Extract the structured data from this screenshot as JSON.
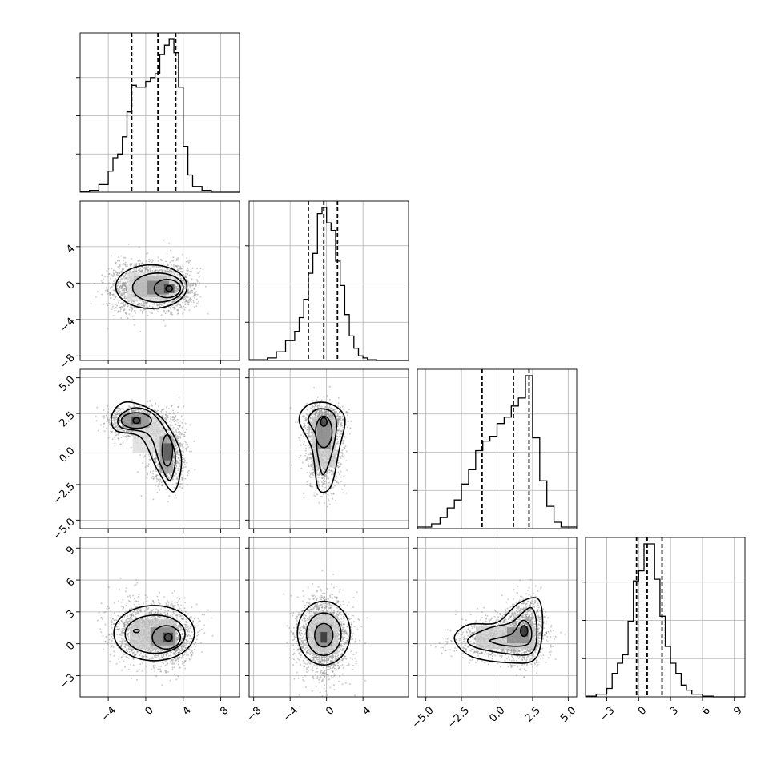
{
  "colors": {
    "line": "#000000",
    "grid": "#b0b0b0",
    "scatter": "#8c8c8c",
    "background": "#ffffff"
  },
  "chart_data": {
    "type": "corner",
    "grid": true,
    "dims": [
      {
        "axis_range": [
          -7,
          10
        ],
        "tick_values": [
          -4,
          0,
          4,
          8
        ],
        "tick_labels": [
          "−4",
          "0",
          "4",
          "8"
        ]
      },
      {
        "axis_range": [
          -8.5,
          9
        ],
        "tick_values": [
          -8,
          -4,
          0,
          4
        ],
        "tick_labels": [
          "−8",
          "−4",
          "0",
          "4"
        ]
      },
      {
        "axis_range": [
          -5.6,
          5.6
        ],
        "tick_values": [
          -5,
          -2.5,
          0,
          2.5,
          5
        ],
        "tick_labels": [
          "−5.0",
          "−2.5",
          "0.0",
          "2.5",
          "5.0"
        ]
      },
      {
        "axis_range": [
          -5,
          10
        ],
        "tick_values": [
          -3,
          0,
          3,
          6,
          9
        ],
        "tick_labels": [
          "−3",
          "0",
          "3",
          "6",
          "9"
        ]
      }
    ],
    "histograms": [
      {
        "dim": 0,
        "quantiles": [
          -1.5,
          1.3,
          3.2
        ],
        "bin_edges": [
          -7.0,
          -6.0,
          -5.0,
          -4.0,
          -3.5,
          -3.0,
          -2.5,
          -2.0,
          -1.5,
          -1.0,
          -0.5,
          0.0,
          0.5,
          1.0,
          1.5,
          2.0,
          2.5,
          3.0,
          3.5,
          4.0,
          4.5,
          5.0,
          6.0,
          7.0,
          10.0
        ],
        "counts": [
          2,
          5,
          20,
          55,
          90,
          100,
          145,
          210,
          280,
          275,
          275,
          290,
          300,
          310,
          360,
          385,
          400,
          365,
          275,
          120,
          45,
          15,
          5,
          0
        ]
      },
      {
        "dim": 1,
        "quantiles": [
          -2.0,
          -0.3,
          1.2
        ],
        "bin_edges": [
          -8.5,
          -6.5,
          -5.5,
          -4.5,
          -3.5,
          -3.0,
          -2.5,
          -2.0,
          -1.5,
          -1.0,
          -0.5,
          0.0,
          0.5,
          1.0,
          1.5,
          2.0,
          2.5,
          3.0,
          3.5,
          4.0,
          4.5,
          5.5,
          9.0
        ],
        "counts": [
          2,
          8,
          28,
          65,
          95,
          140,
          200,
          285,
          350,
          480,
          500,
          450,
          425,
          325,
          245,
          150,
          80,
          40,
          15,
          8,
          2,
          0
        ]
      },
      {
        "dim": 2,
        "quantiles": [
          -1.05,
          1.15,
          2.25
        ],
        "bin_edges": [
          -5.6,
          -4.6,
          -4.0,
          -3.5,
          -3.0,
          -2.5,
          -2.0,
          -1.5,
          -1.0,
          -0.5,
          0.0,
          0.5,
          1.0,
          1.5,
          2.0,
          2.5,
          3.0,
          3.5,
          4.0,
          4.5,
          5.6
        ],
        "counts": [
          5,
          15,
          35,
          65,
          90,
          140,
          185,
          245,
          275,
          290,
          330,
          350,
          385,
          410,
          480,
          285,
          150,
          70,
          20,
          5
        ]
      },
      {
        "dim": 3,
        "quantiles": [
          -0.2,
          0.8,
          2.2
        ],
        "bin_edges": [
          -5.0,
          -4.0,
          -3.0,
          -2.5,
          -2.0,
          -1.5,
          -1.0,
          -0.5,
          0.0,
          0.5,
          1.0,
          1.5,
          2.0,
          2.5,
          3.0,
          3.5,
          4.0,
          4.5,
          5.0,
          6.0,
          7.0,
          10.0
        ],
        "counts": [
          2,
          8,
          25,
          70,
          100,
          125,
          225,
          345,
          375,
          455,
          455,
          350,
          240,
          150,
          100,
          70,
          35,
          20,
          8,
          2,
          0
        ]
      }
    ],
    "pairs": [
      {
        "x_dim": 0,
        "y_dim": 1,
        "seed": 11,
        "n_points": 2000,
        "components": [
          {
            "w": 0.55,
            "mx": 2.5,
            "my": -0.5,
            "sx": 1.4,
            "sy": 1.35
          },
          {
            "w": 0.45,
            "mx": -1.2,
            "my": -0.3,
            "sx": 1.5,
            "sy": 1.45
          }
        ],
        "contours": [
          {
            "cx": 0.6,
            "cy": -0.4,
            "rx": 3.8,
            "ry": 2.4
          },
          {
            "cx": 1.3,
            "cy": -0.5,
            "rx": 2.7,
            "ry": 1.6
          },
          {
            "cx": 2.3,
            "cy": -0.6,
            "rx": 1.4,
            "ry": 1.0
          },
          {
            "cx": 2.5,
            "cy": -0.6,
            "rx": 0.35,
            "ry": 0.3
          }
        ],
        "density": [
          {
            "x": 2.5,
            "y": -0.6,
            "w": 1.1,
            "h": 1.0,
            "s": 0.8
          },
          {
            "x": 1.3,
            "y": -0.5,
            "w": 2.4,
            "h": 1.5,
            "s": 0.55
          },
          {
            "x": 0.5,
            "y": -0.4,
            "w": 3.6,
            "h": 2.3,
            "s": 0.3
          },
          {
            "x": 0.6,
            "y": -0.4,
            "w": 5.2,
            "h": 3.2,
            "s": 0.12
          }
        ]
      },
      {
        "x_dim": 0,
        "y_dim": 2,
        "seed": 23,
        "n_points": 2000,
        "components": [
          {
            "w": 0.5,
            "mx": -1.0,
            "my": 1.9,
            "sx": 1.5,
            "sy": 0.55
          },
          {
            "w": 0.5,
            "mx": 2.3,
            "my": -0.3,
            "sx": 1.0,
            "sy": 1.2
          }
        ],
        "contours": [
          {
            "type": "path",
            "points": [
              [
                -3.6,
                2.4
              ],
              [
                -2.2,
                3.3
              ],
              [
                0.5,
                2.8
              ],
              [
                2.4,
                1.6
              ],
              [
                3.8,
                -0.6
              ],
              [
                3.0,
                -3.0
              ],
              [
                1.2,
                -1.4
              ],
              [
                -0.5,
                0.8
              ],
              [
                -3.2,
                1.3
              ]
            ]
          },
          {
            "type": "path",
            "points": [
              [
                -2.8,
                2.3
              ],
              [
                -1.0,
                2.9
              ],
              [
                1.2,
                2.2
              ],
              [
                3.1,
                -0.2
              ],
              [
                2.6,
                -2.2
              ],
              [
                1.5,
                -1.0
              ],
              [
                0.3,
                1.0
              ],
              [
                -2.6,
                1.5
              ]
            ]
          },
          {
            "cx": -1.0,
            "cy": 2.0,
            "rx": 1.6,
            "ry": 0.55
          },
          {
            "cx": 2.3,
            "cy": -0.1,
            "rx": 0.55,
            "ry": 1.1
          },
          {
            "cx": -1.0,
            "cy": 2.0,
            "rx": 0.35,
            "ry": 0.2
          }
        ],
        "density": [
          {
            "x": -1.0,
            "y": 2.0,
            "w": 1.0,
            "h": 0.5,
            "s": 0.8
          },
          {
            "x": 2.3,
            "y": -0.2,
            "w": 0.8,
            "h": 1.2,
            "s": 0.7
          },
          {
            "x": -1.0,
            "y": 2.0,
            "w": 2.8,
            "h": 1.0,
            "s": 0.45
          },
          {
            "x": 2.2,
            "y": -0.4,
            "w": 1.4,
            "h": 2.6,
            "s": 0.4
          },
          {
            "x": 0.3,
            "y": 1.0,
            "w": 3.4,
            "h": 2.6,
            "s": 0.15
          }
        ]
      },
      {
        "x_dim": 0,
        "y_dim": 3,
        "seed": 37,
        "n_points": 2000,
        "components": [
          {
            "w": 0.6,
            "mx": 2.4,
            "my": 0.6,
            "sx": 1.4,
            "sy": 1.4
          },
          {
            "w": 0.4,
            "mx": -0.8,
            "my": 1.2,
            "sx": 1.6,
            "sy": 1.6
          }
        ],
        "contours": [
          {
            "cx": 0.9,
            "cy": 1.0,
            "rx": 4.3,
            "ry": 2.6
          },
          {
            "cx": 1.0,
            "cy": 0.9,
            "rx": 3.2,
            "ry": 1.8
          },
          {
            "cx": 2.2,
            "cy": 0.6,
            "rx": 1.5,
            "ry": 1.1
          },
          {
            "cx": 2.4,
            "cy": 0.6,
            "rx": 0.4,
            "ry": 0.35
          },
          {
            "cx": -1.0,
            "cy": 1.2,
            "rx": 0.3,
            "ry": 0.15
          }
        ],
        "density": [
          {
            "x": 2.4,
            "y": 0.6,
            "w": 1.0,
            "h": 0.9,
            "s": 0.8
          },
          {
            "x": 1.8,
            "y": 0.7,
            "w": 2.6,
            "h": 1.7,
            "s": 0.5
          },
          {
            "x": 0.8,
            "y": 0.9,
            "w": 5.0,
            "h": 2.8,
            "s": 0.22
          }
        ]
      },
      {
        "x_dim": 1,
        "y_dim": 2,
        "seed": 41,
        "n_points": 2000,
        "components": [
          {
            "w": 0.5,
            "mx": -0.3,
            "my": 1.9,
            "sx": 1.0,
            "sy": 0.6
          },
          {
            "w": 0.5,
            "mx": -0.3,
            "my": -0.3,
            "sx": 1.0,
            "sy": 1.4
          }
        ],
        "contours": [
          {
            "type": "path",
            "points": [
              [
                -3.0,
                2.0
              ],
              [
                -2.0,
                3.1
              ],
              [
                0.3,
                3.2
              ],
              [
                2.0,
                2.2
              ],
              [
                1.4,
                0.0
              ],
              [
                0.5,
                -2.6
              ],
              [
                -0.9,
                -2.8
              ],
              [
                -1.6,
                0.0
              ]
            ]
          },
          {
            "type": "path",
            "points": [
              [
                -2.0,
                2.1
              ],
              [
                -1.0,
                2.8
              ],
              [
                0.6,
                2.6
              ],
              [
                1.1,
                1.6
              ],
              [
                0.5,
                -0.5
              ],
              [
                -0.4,
                -1.8
              ],
              [
                -1.0,
                -0.3
              ],
              [
                -1.2,
                1.0
              ]
            ]
          },
          {
            "cx": -0.3,
            "cy": 1.2,
            "rx": 0.9,
            "ry": 1.1
          },
          {
            "cx": -0.3,
            "cy": 1.9,
            "rx": 0.35,
            "ry": 0.3
          }
        ],
        "density": [
          {
            "x": -0.3,
            "y": 1.9,
            "w": 0.6,
            "h": 0.5,
            "s": 0.8
          },
          {
            "x": -0.3,
            "y": 1.0,
            "w": 1.5,
            "h": 2.0,
            "s": 0.5
          },
          {
            "x": -0.3,
            "y": 0.5,
            "w": 2.6,
            "h": 3.6,
            "s": 0.2
          }
        ]
      },
      {
        "x_dim": 1,
        "y_dim": 3,
        "seed": 53,
        "n_points": 2000,
        "components": [
          {
            "w": 1.0,
            "mx": -0.3,
            "my": 0.7,
            "sx": 1.4,
            "sy": 1.8
          }
        ],
        "contours": [
          {
            "cx": -0.3,
            "cy": 1.0,
            "rx": 2.9,
            "ry": 3.0
          },
          {
            "cx": -0.3,
            "cy": 0.9,
            "rx": 1.9,
            "ry": 2.0
          },
          {
            "cx": -0.3,
            "cy": 0.8,
            "rx": 1.0,
            "ry": 1.1
          }
        ],
        "density": [
          {
            "x": -0.3,
            "y": 0.6,
            "w": 0.7,
            "h": 1.0,
            "s": 0.85
          },
          {
            "x": -0.3,
            "y": 0.8,
            "w": 1.7,
            "h": 2.0,
            "s": 0.5
          },
          {
            "x": -0.3,
            "y": 0.9,
            "w": 3.2,
            "h": 3.6,
            "s": 0.18
          }
        ]
      },
      {
        "x_dim": 2,
        "y_dim": 3,
        "seed": 67,
        "n_points": 2000,
        "components": [
          {
            "w": 0.55,
            "mx": 1.9,
            "my": 1.2,
            "sx": 0.7,
            "sy": 1.5
          },
          {
            "w": 0.45,
            "mx": 0.0,
            "my": 0.4,
            "sx": 1.5,
            "sy": 1.0
          }
        ],
        "contours": [
          {
            "type": "path",
            "points": [
              [
                -3.0,
                0.5
              ],
              [
                -2.0,
                1.8
              ],
              [
                0.0,
                2.0
              ],
              [
                1.5,
                3.8
              ],
              [
                2.9,
                4.2
              ],
              [
                3.2,
                1.5
              ],
              [
                2.7,
                -1.4
              ],
              [
                1.0,
                -1.8
              ],
              [
                -1.8,
                -1.2
              ]
            ]
          },
          {
            "type": "path",
            "points": [
              [
                -2.0,
                0.5
              ],
              [
                -0.5,
                1.5
              ],
              [
                1.0,
                2.0
              ],
              [
                2.4,
                3.4
              ],
              [
                2.8,
                1.2
              ],
              [
                2.4,
                -0.9
              ],
              [
                0.5,
                -0.9
              ],
              [
                -1.6,
                -0.3
              ]
            ]
          },
          {
            "type": "path",
            "points": [
              [
                -0.5,
                0.3
              ],
              [
                1.0,
                0.9
              ],
              [
                1.8,
                2.2
              ],
              [
                2.4,
                1.4
              ],
              [
                2.2,
                0.0
              ],
              [
                0.8,
                -0.2
              ]
            ]
          },
          {
            "cx": 1.9,
            "cy": 1.2,
            "rx": 0.25,
            "ry": 0.5
          }
        ],
        "density": [
          {
            "x": 1.9,
            "y": 1.2,
            "w": 0.5,
            "h": 1.0,
            "s": 0.85
          },
          {
            "x": 1.5,
            "y": 0.8,
            "w": 1.6,
            "h": 1.5,
            "s": 0.5
          },
          {
            "x": 0.6,
            "y": 0.6,
            "w": 4.2,
            "h": 2.2,
            "s": 0.2
          }
        ]
      }
    ]
  }
}
